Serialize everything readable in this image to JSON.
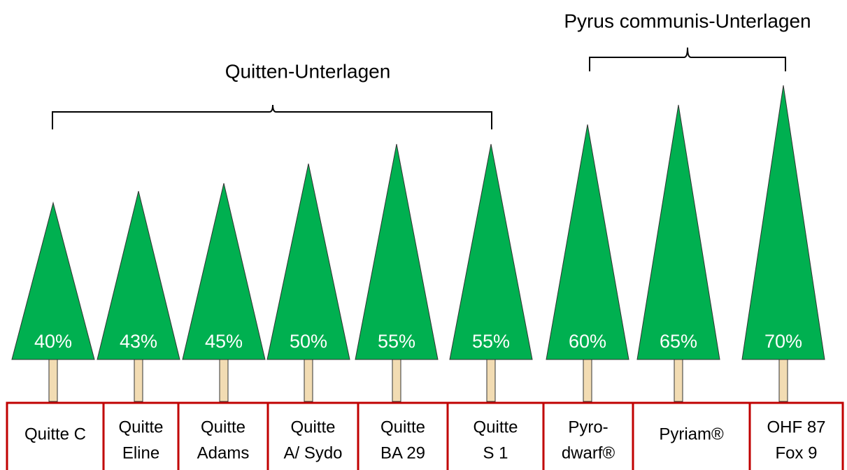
{
  "chart_data": {
    "type": "tree",
    "annotations": [
      "Quitten-Unterlagen",
      "Pyrus communis-Unterlagen"
    ],
    "categories": [
      [
        "Quitte C"
      ],
      [
        "Quitte",
        "Eline"
      ],
      [
        "Quitte",
        "Adams"
      ],
      [
        "Quitte",
        "A/ Sydo"
      ],
      [
        "Quitte",
        "BA 29"
      ],
      [
        "Quitte",
        "S 1"
      ],
      [
        "Pyro-",
        "dwarf®"
      ],
      [
        "Pyriam®"
      ],
      [
        "OHF 87",
        "Fox 9"
      ]
    ],
    "values": [
      40,
      43,
      45,
      50,
      55,
      55,
      60,
      65,
      70
    ],
    "value_labels": [
      "40%",
      "43%",
      "45%",
      "50%",
      "55%",
      "55%",
      "60%",
      "65%",
      "70%"
    ],
    "color": "#00b050"
  }
}
